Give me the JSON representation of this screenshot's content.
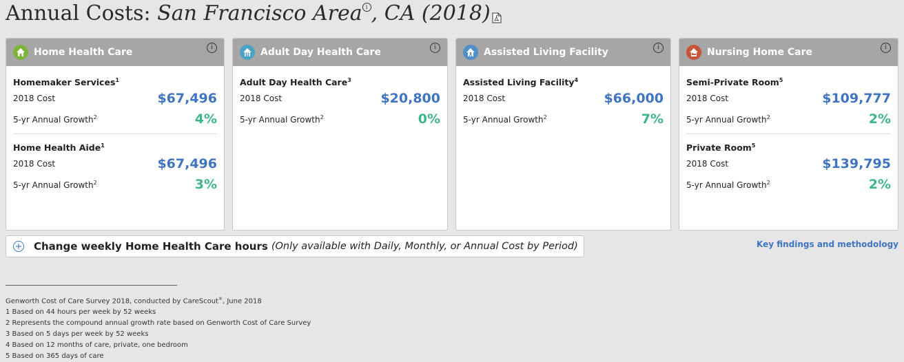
{
  "header": {
    "title_prefix": "Annual Costs:",
    "place": "San Francisco Area",
    "state_year": ", CA (2018)",
    "info_symbol": "i"
  },
  "colors": {
    "header_bg": "#a6a6a6",
    "cost_blue": "#3f74c2",
    "growth_green": "#3fb58f",
    "home_icon": "#7fb23a",
    "adult_day_icon": "#4aa3c4",
    "assisted_icon": "#4f8fc8",
    "nursing_icon": "#c8553a"
  },
  "cards": [
    {
      "title": "Home Health Care",
      "icon": "house-icon",
      "services": [
        {
          "name": "Homemaker Services",
          "note": "1",
          "cost_label": "2018 Cost",
          "cost": "$67,496",
          "growth_label": "5-yr Annual Growth",
          "growth_note": "2",
          "growth": "4%"
        },
        {
          "name": "Home Health Aide",
          "note": "1",
          "cost_label": "2018 Cost",
          "cost": "$67,496",
          "growth_label": "5-yr Annual Growth",
          "growth_note": "2",
          "growth": "3%"
        }
      ]
    },
    {
      "title": "Adult Day Health Care",
      "icon": "people-house-icon",
      "services": [
        {
          "name": "Adult Day Health Care",
          "note": "3",
          "cost_label": "2018 Cost",
          "cost": "$20,800",
          "growth_label": "5-yr Annual Growth",
          "growth_note": "2",
          "growth": "0%"
        }
      ]
    },
    {
      "title": "Assisted Living Facility",
      "icon": "assisted-house-icon",
      "services": [
        {
          "name": "Assisted Living Facility",
          "note": "4",
          "cost_label": "2018 Cost",
          "cost": "$66,000",
          "growth_label": "5-yr Annual Growth",
          "growth_note": "2",
          "growth": "7%"
        }
      ]
    },
    {
      "title": "Nursing Home Care",
      "icon": "bed-house-icon",
      "services": [
        {
          "name": "Semi-Private Room",
          "note": "5",
          "cost_label": "2018 Cost",
          "cost": "$109,777",
          "growth_label": "5-yr Annual Growth",
          "growth_note": "2",
          "growth": "2%"
        },
        {
          "name": "Private Room",
          "note": "5",
          "cost_label": "2018 Cost",
          "cost": "$139,795",
          "growth_label": "5-yr Annual Growth",
          "growth_note": "2",
          "growth": "2%"
        }
      ]
    }
  ],
  "change_hours": {
    "plus": "+",
    "label": "Change weekly Home Health Care hours",
    "note": "(Only available with Daily, Monthly, or Annual Cost by Period)"
  },
  "key_findings_link": "Key findings and methodology",
  "footnotes": {
    "source_prefix": "Genworth Cost of Care Survey 2018, conducted by CareScout",
    "source_reg": "®",
    "source_suffix": ", June 2018",
    "items": [
      "1 Based on 44 hours per week by 52 weeks",
      "2 Represents the compound annual growth rate based on Genworth Cost of Care Survey",
      "3 Based on 5 days per week by 52 weeks",
      "4 Based on 12 months of care, private, one bedroom",
      "5 Based on 365 days of care"
    ]
  }
}
